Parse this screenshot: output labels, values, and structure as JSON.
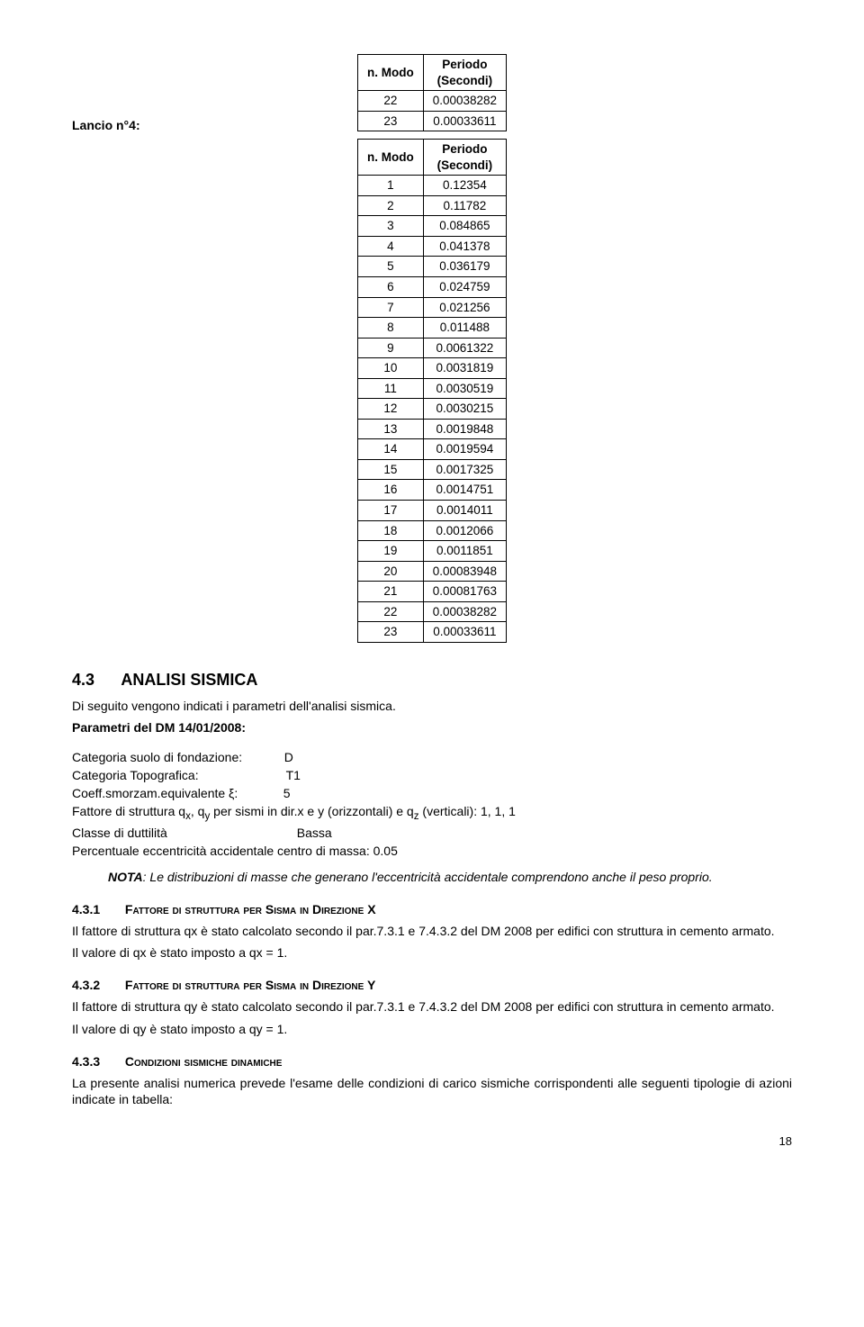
{
  "table1": {
    "headers": [
      "n. Modo",
      "Periodo\n(Secondi)"
    ],
    "rows": [
      [
        "22",
        "0.00038282"
      ],
      [
        "23",
        "0.00033611"
      ]
    ]
  },
  "lancio_label": "Lancio n°4:",
  "table2": {
    "headers": [
      "n. Modo",
      "Periodo\n(Secondi)"
    ],
    "rows": [
      [
        "1",
        "0.12354"
      ],
      [
        "2",
        "0.11782"
      ],
      [
        "3",
        "0.084865"
      ],
      [
        "4",
        "0.041378"
      ],
      [
        "5",
        "0.036179"
      ],
      [
        "6",
        "0.024759"
      ],
      [
        "7",
        "0.021256"
      ],
      [
        "8",
        "0.011488"
      ],
      [
        "9",
        "0.0061322"
      ],
      [
        "10",
        "0.0031819"
      ],
      [
        "11",
        "0.0030519"
      ],
      [
        "12",
        "0.0030215"
      ],
      [
        "13",
        "0.0019848"
      ],
      [
        "14",
        "0.0019594"
      ],
      [
        "15",
        "0.0017325"
      ],
      [
        "16",
        "0.0014751"
      ],
      [
        "17",
        "0.0014011"
      ],
      [
        "18",
        "0.0012066"
      ],
      [
        "19",
        "0.0011851"
      ],
      [
        "20",
        "0.00083948"
      ],
      [
        "21",
        "0.00081763"
      ],
      [
        "22",
        "0.00038282"
      ],
      [
        "23",
        "0.00033611"
      ]
    ]
  },
  "section": {
    "num": "4.3",
    "title": "ANALISI SISMICA"
  },
  "intro1": "Di seguito vengono indicati i parametri dell'analisi sismica.",
  "intro2": "Parametri del DM 14/01/2008:",
  "params": {
    "p1": "Categoria suolo di fondazione:            D",
    "p2": "Categoria Topografica:                         T1",
    "p3": "Coeff.smorzam.equivalente ξ:             5",
    "p4_a": "Fattore di struttura q",
    "p4_b": ", q",
    "p4_c": " per sismi in dir.x e y (orizzontali) e q",
    "p4_d": " (verticali): 1, 1, 1",
    "p5": "Classe di duttilità                                     Bassa",
    "p6": "Percentuale eccentricità accidentale centro di massa: 0.05"
  },
  "note": {
    "label": "NOTA",
    "body": ": Le distribuzioni di masse che generano l'eccentricità accidentale comprendono anche il peso proprio."
  },
  "sub1": {
    "num": "4.3.1",
    "title": "Fattore di struttura per Sisma in Direzione X",
    "p1": "Il fattore di struttura qx è stato calcolato secondo il par.7.3.1 e 7.4.3.2 del DM 2008 per edifici con struttura in cemento armato.",
    "p2": "Il valore di qx è stato imposto a qx = 1."
  },
  "sub2": {
    "num": "4.3.2",
    "title": "Fattore di struttura per Sisma in Direzione Y",
    "p1": "Il fattore di struttura qy è stato calcolato secondo il par.7.3.1 e 7.4.3.2 del DM 2008 per edifici con struttura in cemento armato.",
    "p2": "Il valore di qy è stato imposto a qy = 1."
  },
  "sub3": {
    "num": "4.3.3",
    "title": "Condizioni sismiche dinamiche",
    "p1": "La presente analisi numerica prevede l'esame delle condizioni di carico sismiche corrispondenti alle seguenti tipologie di azioni indicate in tabella:"
  },
  "page_number": "18"
}
